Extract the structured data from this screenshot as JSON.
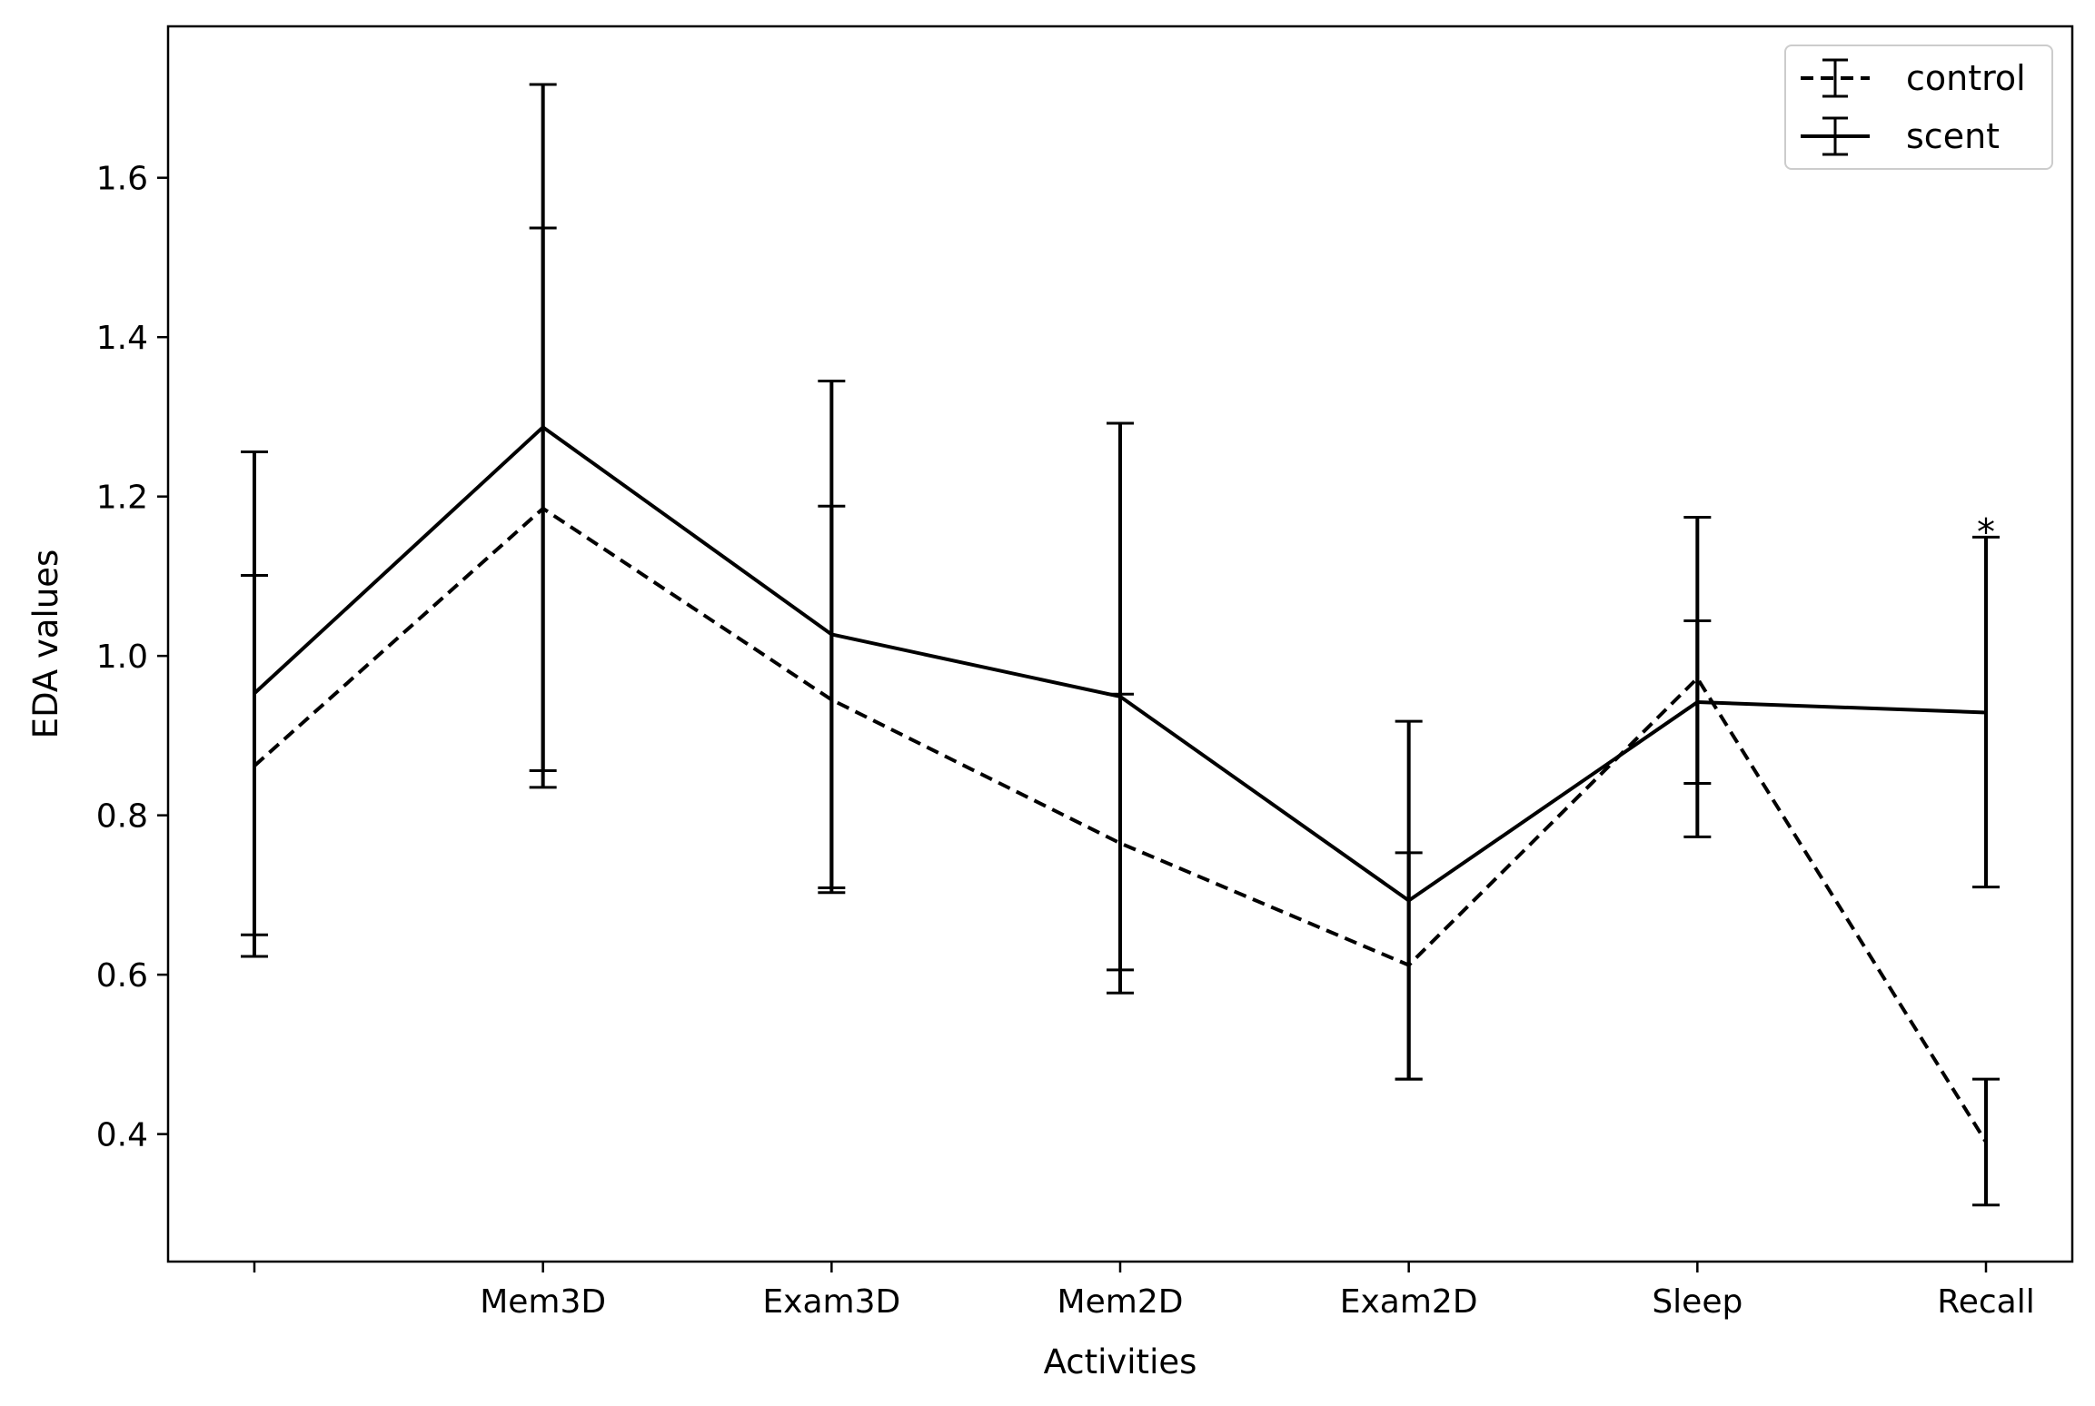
{
  "chart_data": {
    "type": "line",
    "xlabel": "Activities",
    "ylabel": "EDA values",
    "categories": [
      "",
      "Mem3D",
      "Exam3D",
      "Mem2D",
      "Exam2D",
      "Sleep",
      "Recall"
    ],
    "ylim": [
      0.24,
      1.79
    ],
    "yticks": [
      0.4,
      0.6,
      0.8,
      1.0,
      1.2,
      1.4,
      1.6
    ],
    "ytick_labels": [
      "0.4",
      "0.6",
      "0.8",
      "1.0",
      "1.2",
      "1.4",
      "1.6"
    ],
    "grid": false,
    "legend_position": "top-right",
    "series": [
      {
        "name": "control",
        "style": "dashed",
        "color": "#000000",
        "values": [
          0.862,
          1.185,
          0.945,
          0.765,
          0.612,
          0.972,
          0.39
        ],
        "err_low": [
          0.623,
          0.835,
          0.703,
          0.577,
          0.469,
          0.773,
          0.311
        ],
        "err_high": [
          1.101,
          1.537,
          1.188,
          0.952,
          0.753,
          1.174,
          0.469
        ]
      },
      {
        "name": "scent",
        "style": "solid",
        "color": "#000000",
        "values": [
          0.953,
          1.287,
          1.027,
          0.949,
          0.693,
          0.942,
          0.929
        ],
        "err_low": [
          0.65,
          0.856,
          0.709,
          0.606,
          0.469,
          0.84,
          0.71
        ],
        "err_high": [
          1.256,
          1.717,
          1.345,
          1.292,
          0.918,
          1.044,
          1.149
        ]
      }
    ],
    "annotations": [
      {
        "text": "*",
        "category": "Recall",
        "y": 1.165
      }
    ]
  }
}
